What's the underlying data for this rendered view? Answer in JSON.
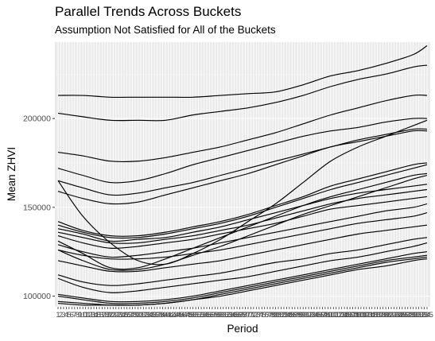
{
  "chart_data": {
    "type": "line",
    "title": "Parallel Trends Across Buckets",
    "subtitle": "Assumption Not Satisfied for All of the Buckets",
    "xlabel": "Period",
    "ylabel": "Mean ZHVI",
    "xlim": [
      1,
      135
    ],
    "ylim": [
      94000,
      243000
    ],
    "yticks": [
      100000,
      150000,
      200000
    ],
    "ytick_labels": [
      "100000",
      "150000",
      "200000"
    ],
    "grid": true,
    "legend": "none",
    "x": [
      1,
      10,
      20,
      30,
      40,
      50,
      60,
      70,
      80,
      90,
      100,
      110,
      120,
      130,
      135
    ],
    "series": [
      {
        "values": [
          213000,
          213000,
          212000,
          212000,
          212000,
          212000,
          213000,
          214000,
          215000,
          219000,
          224000,
          227000,
          231000,
          236000,
          241000
        ]
      },
      {
        "values": [
          203000,
          201000,
          199000,
          199000,
          199000,
          202000,
          204000,
          206000,
          209000,
          213000,
          218000,
          222000,
          225000,
          229000,
          230000
        ]
      },
      {
        "values": [
          181000,
          179000,
          176000,
          176000,
          178000,
          181000,
          184000,
          188000,
          192000,
          197000,
          202000,
          206000,
          210000,
          213000,
          213000
        ]
      },
      {
        "values": [
          172000,
          168000,
          164000,
          165000,
          169000,
          174000,
          178000,
          182000,
          186000,
          190000,
          193000,
          195000,
          198000,
          200000,
          200000
        ]
      },
      {
        "values": [
          165000,
          161000,
          157000,
          158000,
          161000,
          164000,
          168000,
          172000,
          176000,
          180000,
          184000,
          188000,
          191000,
          194000,
          194000
        ]
      },
      {
        "values": [
          159000,
          155000,
          152000,
          153000,
          157000,
          161000,
          165000,
          169000,
          174000,
          179000,
          184000,
          187000,
          190000,
          193000,
          193000
        ]
      },
      {
        "values": [
          165000,
          145000,
          130000,
          120000,
          118000,
          124000,
          132000,
          142000,
          152000,
          164000,
          176000,
          184000,
          190000,
          196000,
          199000
        ]
      },
      {
        "values": [
          142000,
          137000,
          134000,
          134000,
          136000,
          139000,
          142000,
          146000,
          151000,
          156000,
          162000,
          166000,
          170000,
          174000,
          175000
        ]
      },
      {
        "values": [
          140000,
          136000,
          133000,
          133000,
          135000,
          138000,
          141000,
          145000,
          150000,
          155000,
          160000,
          164000,
          168000,
          172000,
          174000
        ]
      },
      {
        "values": [
          138000,
          135000,
          131000,
          132000,
          133000,
          136000,
          139000,
          143000,
          147000,
          151000,
          155000,
          158000,
          160000,
          162000,
          163000
        ]
      },
      {
        "values": [
          136000,
          133000,
          130000,
          130000,
          132000,
          134000,
          137000,
          140000,
          144000,
          148000,
          152000,
          155000,
          157000,
          159000,
          160000
        ]
      },
      {
        "values": [
          134000,
          130000,
          127000,
          128000,
          130000,
          132000,
          135000,
          138000,
          141000,
          145000,
          149000,
          151000,
          153000,
          155000,
          156000
        ]
      },
      {
        "values": [
          129000,
          125000,
          122000,
          123000,
          125000,
          127000,
          130000,
          133000,
          136000,
          139000,
          142000,
          145000,
          148000,
          150000,
          152000
        ]
      },
      {
        "values": [
          131000,
          124000,
          116000,
          116000,
          121000,
          127000,
          133000,
          139000,
          145000,
          151000,
          156000,
          160000,
          164000,
          168000,
          169000
        ]
      },
      {
        "values": [
          126000,
          120000,
          115000,
          115000,
          118000,
          123000,
          128000,
          134000,
          140000,
          146000,
          151000,
          156000,
          161000,
          166000,
          168000
        ]
      },
      {
        "values": [
          126000,
          123000,
          121000,
          121000,
          122000,
          124000,
          126000,
          129000,
          132000,
          135000,
          138000,
          141000,
          143000,
          145000,
          147000
        ]
      },
      {
        "values": [
          120000,
          117000,
          114000,
          114000,
          116000,
          118000,
          120000,
          123000,
          126000,
          129000,
          132000,
          135000,
          137000,
          139000,
          140000
        ]
      },
      {
        "values": [
          112000,
          108000,
          106000,
          107000,
          109000,
          111000,
          113000,
          116000,
          119000,
          121000,
          124000,
          126000,
          129000,
          132000,
          133000
        ]
      },
      {
        "values": [
          110000,
          105000,
          102000,
          103000,
          105000,
          107000,
          109000,
          111000,
          114000,
          117000,
          120000,
          122000,
          125000,
          128000,
          130000
        ]
      },
      {
        "values": [
          101000,
          99000,
          97000,
          97000,
          98000,
          100000,
          103000,
          106000,
          109000,
          112000,
          115000,
          118000,
          121000,
          124000,
          125000
        ]
      },
      {
        "values": [
          100000,
          98000,
          96000,
          96000,
          97000,
          99000,
          102000,
          105000,
          108000,
          111000,
          114000,
          117000,
          120000,
          122000,
          123000
        ]
      },
      {
        "values": [
          97000,
          96000,
          95000,
          95000,
          96000,
          98000,
          101000,
          104000,
          107000,
          110000,
          113000,
          116000,
          119000,
          121000,
          122000
        ]
      },
      {
        "values": [
          96000,
          95000,
          95000,
          95000,
          96000,
          98000,
          100000,
          103000,
          106000,
          109000,
          112000,
          115000,
          117000,
          120000,
          121000
        ]
      }
    ]
  }
}
